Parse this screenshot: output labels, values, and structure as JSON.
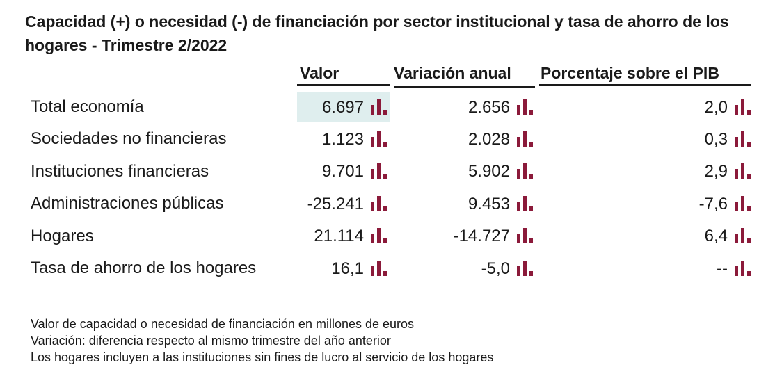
{
  "title": "Capacidad (+) o necesidad (-) de financiación por sector institucional y tasa de ahorro de los hogares - Trimestre 2/2022",
  "headers": {
    "valor": "Valor",
    "variacion": "Variación anual",
    "porcentaje": "Porcentaje sobre el PIB"
  },
  "rows": [
    {
      "label": "Total economía",
      "valor": "6.697",
      "variacion": "2.656",
      "porcentaje": "2,0"
    },
    {
      "label": "Sociedades no financieras",
      "valor": "1.123",
      "variacion": "2.028",
      "porcentaje": "0,3"
    },
    {
      "label": "Instituciones financieras",
      "valor": "9.701",
      "variacion": "5.902",
      "porcentaje": "2,9"
    },
    {
      "label": "Administraciones públicas",
      "valor": "-25.241",
      "variacion": "9.453",
      "porcentaje": "-7,6"
    },
    {
      "label": "Hogares",
      "valor": "21.114",
      "variacion": "-14.727",
      "porcentaje": "6,4"
    },
    {
      "label": "Tasa de ahorro de los hogares",
      "valor": "16,1",
      "variacion": "-5,0",
      "porcentaje": "--"
    }
  ],
  "notes": [
    "Valor de capacidad o necesidad de financiación en millones de euros",
    "Variación: diferencia respecto al mismo trimestre del año anterior",
    "Los hogares incluyen a las instituciones sin fines de lucro al servicio de los hogares"
  ],
  "colors": {
    "icon": "#8b1a3a",
    "highlight": "#dfeeee"
  },
  "icons": {
    "chart": "bar-chart-icon"
  }
}
